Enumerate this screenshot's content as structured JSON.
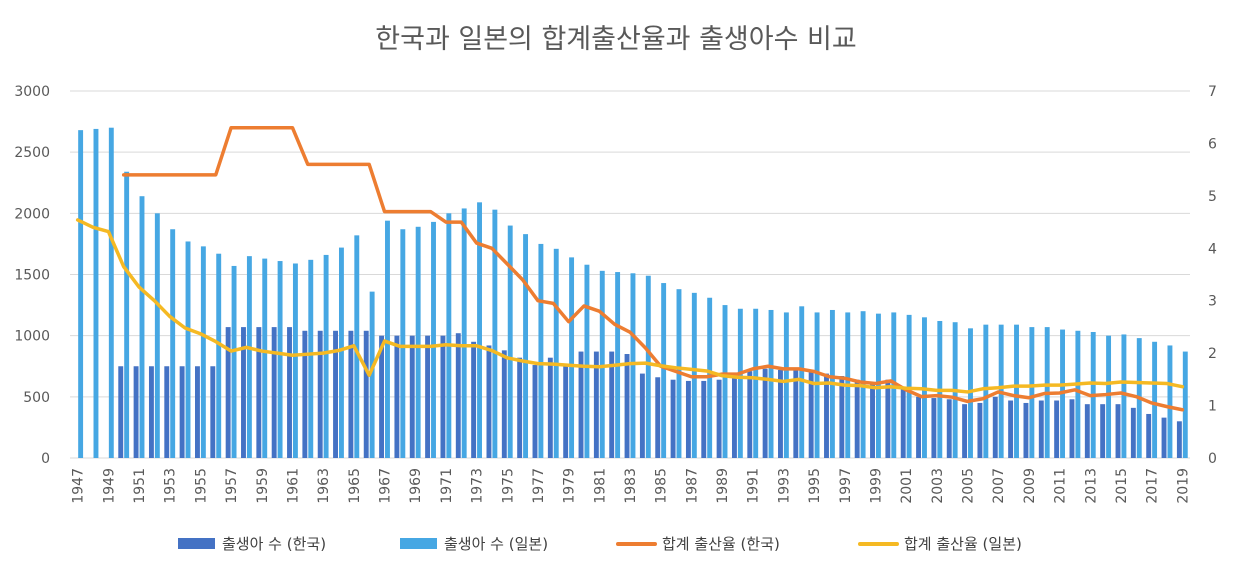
{
  "chart_data": {
    "type": "bar+line",
    "title": "한국과 일본의 합계출산율과 출생아수 비교",
    "x_tick_labels": [
      "1947",
      "1949",
      "1951",
      "1953",
      "1955",
      "1957",
      "1959",
      "1961",
      "1963",
      "1965",
      "1967",
      "1969",
      "1971",
      "1973",
      "1975",
      "1977",
      "1979",
      "1981",
      "1983",
      "1985",
      "1987",
      "1989",
      "1991",
      "1993",
      "1995",
      "1997",
      "1999",
      "2001",
      "2003",
      "2005",
      "2007",
      "2009",
      "2011",
      "2013",
      "2015",
      "2017",
      "2019"
    ],
    "y_left_ticks": [
      "0",
      "500",
      "1000",
      "1500",
      "2000",
      "2500",
      "3000"
    ],
    "y_right_ticks": [
      "0",
      "1",
      "2",
      "3",
      "4",
      "5",
      "6",
      "7"
    ],
    "ylim_left": [
      0,
      3000
    ],
    "ylim_right": [
      0,
      7
    ],
    "years": [
      1947,
      1948,
      1949,
      1950,
      1951,
      1952,
      1953,
      1954,
      1955,
      1956,
      1957,
      1958,
      1959,
      1960,
      1961,
      1962,
      1963,
      1964,
      1965,
      1966,
      1967,
      1968,
      1969,
      1970,
      1971,
      1972,
      1973,
      1974,
      1975,
      1976,
      1977,
      1978,
      1979,
      1980,
      1981,
      1982,
      1983,
      1984,
      1985,
      1986,
      1987,
      1988,
      1989,
      1990,
      1991,
      1992,
      1993,
      1994,
      1995,
      1996,
      1997,
      1998,
      1999,
      2000,
      2001,
      2002,
      2003,
      2004,
      2005,
      2006,
      2007,
      2008,
      2009,
      2010,
      2011,
      2012,
      2013,
      2014,
      2015,
      2016,
      2017,
      2018,
      2019
    ],
    "series": [
      {
        "name": "출생아 수 (한국)",
        "type": "bar",
        "axis": "left",
        "color": "#4472c4",
        "values": [
          null,
          null,
          null,
          750,
          750,
          750,
          750,
          750,
          750,
          750,
          1070,
          1070,
          1070,
          1070,
          1070,
          1040,
          1040,
          1040,
          1040,
          1040,
          1000,
          1000,
          1000,
          1000,
          1000,
          1020,
          950,
          920,
          880,
          820,
          760,
          820,
          750,
          870,
          870,
          870,
          850,
          690,
          660,
          640,
          630,
          630,
          640,
          650,
          710,
          730,
          720,
          730,
          720,
          690,
          670,
          640,
          620,
          640,
          560,
          500,
          490,
          480,
          440,
          450,
          500,
          470,
          450,
          470,
          470,
          480,
          440,
          440,
          440,
          410,
          360,
          330,
          300
        ]
      },
      {
        "name": "출생아 수 (일본)",
        "type": "bar",
        "axis": "left",
        "color": "#46a7e3",
        "values": [
          2680,
          2690,
          2700,
          2340,
          2140,
          2000,
          1870,
          1770,
          1730,
          1670,
          1570,
          1650,
          1630,
          1610,
          1590,
          1620,
          1660,
          1720,
          1820,
          1360,
          1940,
          1870,
          1890,
          1930,
          2000,
          2040,
          2090,
          2030,
          1900,
          1830,
          1750,
          1710,
          1640,
          1580,
          1530,
          1520,
          1510,
          1490,
          1430,
          1380,
          1350,
          1310,
          1250,
          1220,
          1220,
          1210,
          1190,
          1240,
          1190,
          1210,
          1190,
          1200,
          1180,
          1190,
          1170,
          1150,
          1120,
          1110,
          1060,
          1090,
          1090,
          1090,
          1070,
          1070,
          1050,
          1040,
          1030,
          1000,
          1010,
          980,
          950,
          920,
          870
        ]
      },
      {
        "name": "합계 출산율 (한국)",
        "type": "line",
        "axis": "right",
        "color": "#ed7d31",
        "values": [
          null,
          null,
          null,
          5.4,
          5.4,
          5.4,
          5.4,
          5.4,
          5.4,
          5.4,
          6.3,
          6.3,
          6.3,
          6.3,
          6.3,
          5.6,
          5.6,
          5.6,
          5.6,
          5.6,
          4.7,
          4.7,
          4.7,
          4.7,
          4.5,
          4.5,
          4.1,
          4.0,
          3.7,
          3.4,
          3.0,
          2.95,
          2.6,
          2.9,
          2.8,
          2.55,
          2.4,
          2.1,
          1.75,
          1.65,
          1.55,
          1.55,
          1.6,
          1.6,
          1.7,
          1.75,
          1.7,
          1.7,
          1.65,
          1.55,
          1.52,
          1.45,
          1.42,
          1.47,
          1.3,
          1.17,
          1.19,
          1.16,
          1.08,
          1.13,
          1.26,
          1.19,
          1.15,
          1.23,
          1.24,
          1.3,
          1.19,
          1.21,
          1.24,
          1.17,
          1.05,
          0.98,
          0.92
        ]
      },
      {
        "name": "합계 출산율 (일본)",
        "type": "line",
        "axis": "right",
        "color": "#f5b923",
        "values": [
          4.54,
          4.4,
          4.32,
          3.65,
          3.26,
          3.0,
          2.7,
          2.48,
          2.37,
          2.22,
          2.04,
          2.11,
          2.04,
          2.0,
          1.96,
          1.98,
          2.0,
          2.05,
          2.14,
          1.58,
          2.23,
          2.13,
          2.13,
          2.13,
          2.16,
          2.14,
          2.14,
          2.05,
          1.91,
          1.85,
          1.8,
          1.79,
          1.77,
          1.75,
          1.74,
          1.77,
          1.8,
          1.81,
          1.76,
          1.72,
          1.69,
          1.66,
          1.57,
          1.54,
          1.53,
          1.5,
          1.46,
          1.5,
          1.42,
          1.43,
          1.39,
          1.38,
          1.34,
          1.36,
          1.33,
          1.32,
          1.29,
          1.29,
          1.26,
          1.32,
          1.34,
          1.37,
          1.37,
          1.39,
          1.39,
          1.41,
          1.43,
          1.42,
          1.45,
          1.44,
          1.43,
          1.42,
          1.36
        ]
      }
    ],
    "legend_position": "bottom"
  }
}
